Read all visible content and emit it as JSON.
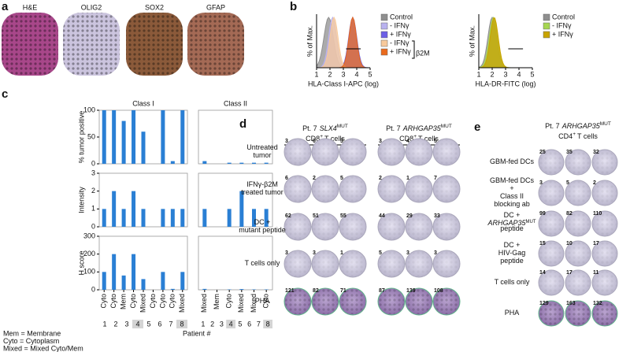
{
  "panel_a": {
    "label": "a",
    "stains": [
      "H&E",
      "OLIG2",
      "SOX2",
      "GFAP"
    ]
  },
  "panel_b": {
    "label": "b",
    "plots": [
      {
        "y_label": "% of Max.",
        "x_label": "HLA-Class I-APC (log)",
        "xlim": [
          1,
          5
        ],
        "xticks": [
          1,
          2,
          3,
          4,
          5
        ],
        "legend": [
          {
            "name": "Control",
            "color": "#8f8f8f"
          },
          {
            "name": "- IFNγ",
            "color": "#b9b2ef"
          },
          {
            "name": "+ IFNγ",
            "color": "#6b5fe6"
          },
          {
            "name": "- IFNγ",
            "color": "#f7c99b"
          },
          {
            "name": "+ IFNγ",
            "color": "#ea6a1c"
          }
        ],
        "bracket": "β2M"
      },
      {
        "y_label": "% of Max.",
        "x_label": "HLA-DR-FITC (log)",
        "xlim": [
          1,
          5
        ],
        "xticks": [
          1,
          2,
          3,
          4,
          5
        ],
        "legend": [
          {
            "name": "Control",
            "color": "#8f8f8f"
          },
          {
            "name": "- IFNγ",
            "color": "#a6d651"
          },
          {
            "name": "+ IFNγ",
            "color": "#c9a400"
          }
        ]
      }
    ]
  },
  "chart_data": [
    {
      "type": "bar",
      "title": "Class I",
      "y_label": "% tumor positive",
      "values": [
        100,
        100,
        80,
        100,
        60,
        0,
        100,
        5,
        100
      ],
      "color": "#2a7fd4",
      "ylim": [
        0,
        100
      ],
      "yticks": [
        0,
        50,
        100
      ]
    },
    {
      "type": "bar",
      "title": "Class II",
      "values": [
        5,
        0,
        2,
        2,
        2,
        2
      ],
      "color": "#2a7fd4",
      "ylim": [
        0,
        100
      ]
    },
    {
      "type": "bar",
      "y_label": "Intensity",
      "values": [
        1,
        2,
        1,
        2,
        1,
        0,
        1,
        1,
        1
      ],
      "color": "#2a7fd4",
      "ylim": [
        0,
        3
      ],
      "yticks": [
        0,
        1,
        2,
        3
      ]
    },
    {
      "type": "bar",
      "values": [
        1,
        0,
        1,
        2,
        1,
        1
      ],
      "color": "#2a7fd4",
      "ylim": [
        0,
        3
      ]
    },
    {
      "type": "bar",
      "y_label": "H score",
      "categories": [
        "Cyto",
        "Cyto",
        "Mem",
        "Cyto",
        "Mixed",
        "Cyto",
        "Cyto",
        "Cyto",
        "Mixed"
      ],
      "values": [
        100,
        200,
        80,
        200,
        60,
        0,
        100,
        5,
        100
      ],
      "color": "#2a7fd4",
      "ylim": [
        0,
        300
      ],
      "yticks": [
        0,
        100,
        200,
        300
      ]
    },
    {
      "type": "bar",
      "categories": [
        "Mixed",
        "Mem",
        "Cyto",
        "Mixed",
        "Mixed",
        "Cyto"
      ],
      "values": [
        5,
        0,
        2,
        4,
        2,
        2
      ],
      "color": "#2a7fd4",
      "ylim": [
        0,
        300
      ]
    }
  ],
  "panel_c": {
    "label": "c",
    "x_label": "Patient #",
    "patients": [
      1,
      2,
      3,
      4,
      5,
      6,
      7,
      8
    ],
    "legend": [
      {
        "text": "Mem = Membrane",
        "color": "#000000"
      },
      {
        "text": "Cyto = Cytoplasm",
        "color": "#000000"
      },
      {
        "text": "Mixed = Mixed Cyto/Mem",
        "color": "#d9541e"
      }
    ]
  },
  "panel_d": {
    "label": "d",
    "rows": [
      [
        "Untreated",
        "tumor"
      ],
      [
        "IFNγ-β2M",
        "treated tumor"
      ],
      [
        "DC +",
        "mutant peptide"
      ],
      [
        "T cells only"
      ],
      [
        "PHA"
      ]
    ],
    "groups": [
      {
        "patient": "Pt. 7",
        "gene": "SLX4",
        "gene_sup": "MUT",
        "cells": "CD8",
        "cells_sup": "+",
        "cells_suffix": "T cells",
        "counts": [
          [
            3,
            0,
            3
          ],
          [
            6,
            2,
            5
          ],
          [
            62,
            51,
            55
          ],
          [
            3,
            3,
            1
          ],
          [
            121,
            82,
            71
          ]
        ]
      },
      {
        "patient": "Pt. 7",
        "gene": "ARHGAP35",
        "gene_sup": "MUT",
        "cells": "CD8",
        "cells_sup": "+",
        "cells_suffix": "T cells",
        "counts": [
          [
            3,
            4,
            5
          ],
          [
            2,
            1,
            7
          ],
          [
            44,
            29,
            33
          ],
          [
            5,
            3,
            3
          ],
          [
            87,
            139,
            108
          ]
        ]
      }
    ]
  },
  "panel_e": {
    "label": "e",
    "patient": "Pt. 7",
    "gene": "ARHGAP35",
    "gene_sup": "MUT",
    "cells": "CD4",
    "cells_sup": "+",
    "cells_suffix": "T cells",
    "rows": [
      [
        "GBM-fed DCs"
      ],
      [
        "GBM-fed DCs",
        "+",
        "Class II",
        "blocking ab"
      ],
      [
        "DC +",
        {
          "text": "ARHGAP35",
          "sup": "MUT"
        },
        "peptide"
      ],
      [
        "DC +",
        "HIV-Gag",
        "peptide"
      ],
      [
        "T cells only"
      ],
      [
        "PHA"
      ]
    ],
    "counts": [
      [
        25,
        35,
        32
      ],
      [
        3,
        5,
        2
      ],
      [
        99,
        82,
        110
      ],
      [
        15,
        10,
        17
      ],
      [
        14,
        17,
        11
      ],
      [
        129,
        163,
        132
      ]
    ]
  }
}
